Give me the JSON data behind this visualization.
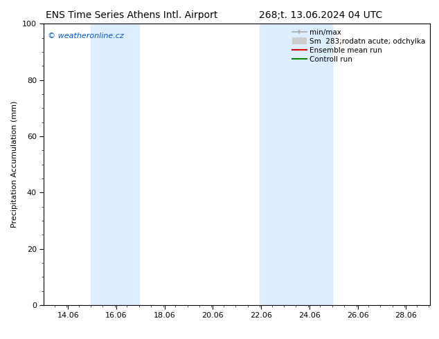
{
  "title_left": "ENS Time Series Athens Intl. Airport",
  "title_right": "268;t. 13.06.2024 04 UTC",
  "ylabel": "Precipitation Accumulation (mm)",
  "watermark": "© weatheronline.cz",
  "watermark_color": "#0055cc",
  "xlim": [
    13.06,
    29.06
  ],
  "ylim": [
    0,
    100
  ],
  "xticks": [
    14.06,
    16.06,
    18.06,
    20.06,
    22.06,
    24.06,
    26.06,
    28.06
  ],
  "xtick_labels": [
    "14.06",
    "16.06",
    "18.06",
    "20.06",
    "22.06",
    "24.06",
    "26.06",
    "28.06"
  ],
  "yticks": [
    0,
    20,
    40,
    60,
    80,
    100
  ],
  "shaded_bands": [
    {
      "x_start": 15.0,
      "x_end": 17.0
    },
    {
      "x_start": 22.0,
      "x_end": 25.0
    }
  ],
  "band_color": "#ddeeff",
  "background_color": "#ffffff",
  "plot_bg_color": "#ffffff",
  "title_fontsize": 10,
  "axis_label_fontsize": 8,
  "tick_fontsize": 8,
  "watermark_fontsize": 8,
  "legend_fontsize": 7.5
}
